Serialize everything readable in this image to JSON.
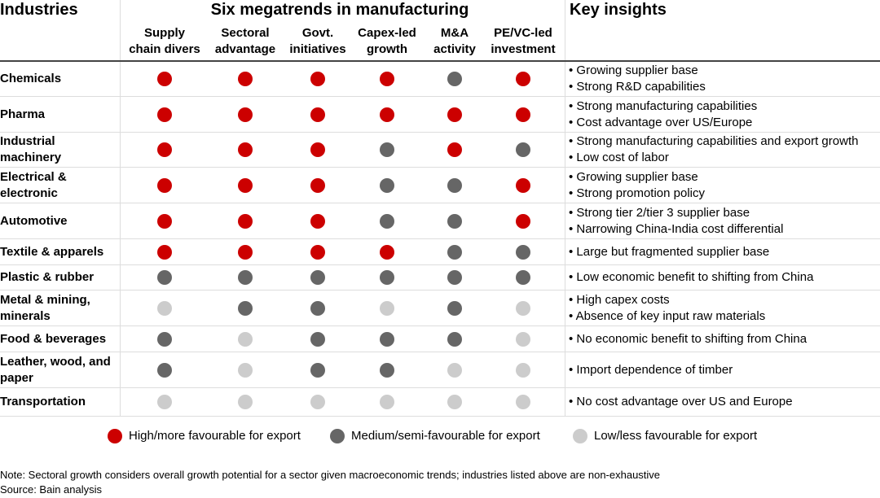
{
  "header": {
    "industries": "Industries",
    "megatrends": "Six megatrends in manufacturing",
    "insights": "Key insights",
    "columns": [
      [
        "Supply",
        "chain divers"
      ],
      [
        "Sectoral",
        "advantage"
      ],
      [
        "Govt.",
        "initiatives"
      ],
      [
        "Capex-led",
        "growth"
      ],
      [
        "M&A",
        "activity"
      ],
      [
        "PE/VC-led",
        "investment"
      ]
    ]
  },
  "colors": {
    "H": "#cc0000",
    "M": "#666666",
    "L": "#cccccc"
  },
  "rows": [
    {
      "industry": "Chemicals",
      "levels": [
        "H",
        "H",
        "H",
        "H",
        "M",
        "H"
      ],
      "insights": [
        "Growing supplier base",
        "Strong R&D capabilities"
      ]
    },
    {
      "industry": "Pharma",
      "levels": [
        "H",
        "H",
        "H",
        "H",
        "H",
        "H"
      ],
      "insights": [
        "Strong manufacturing capabilities",
        "Cost advantage over US/Europe"
      ]
    },
    {
      "industry": "Industrial machinery",
      "levels": [
        "H",
        "H",
        "H",
        "M",
        "H",
        "M"
      ],
      "insights": [
        "Strong manufacturing capabilities and export growth",
        "Low cost of labor"
      ]
    },
    {
      "industry": "Electrical & electronic",
      "levels": [
        "H",
        "H",
        "H",
        "M",
        "M",
        "H"
      ],
      "insights": [
        "Growing supplier base",
        "Strong promotion policy"
      ]
    },
    {
      "industry": "Automotive",
      "levels": [
        "H",
        "H",
        "H",
        "M",
        "M",
        "H"
      ],
      "insights": [
        "Strong tier 2/tier 3 supplier base",
        "Narrowing China-India cost differential"
      ]
    },
    {
      "industry": "Textile & apparels",
      "levels": [
        "H",
        "H",
        "H",
        "H",
        "M",
        "M"
      ],
      "insights": [
        "Large but fragmented supplier base"
      ]
    },
    {
      "industry": "Plastic & rubber",
      "levels": [
        "M",
        "M",
        "M",
        "M",
        "M",
        "M"
      ],
      "insights": [
        "Low economic benefit to shifting from China"
      ]
    },
    {
      "industry": "Metal & mining, minerals",
      "levels": [
        "L",
        "M",
        "M",
        "L",
        "M",
        "L"
      ],
      "insights": [
        "High capex costs",
        "Absence of key input raw materials"
      ]
    },
    {
      "industry": "Food & beverages",
      "levels": [
        "M",
        "L",
        "M",
        "M",
        "M",
        "L"
      ],
      "insights": [
        "No economic benefit to shifting from China"
      ]
    },
    {
      "industry": "Leather, wood, and paper",
      "levels": [
        "M",
        "L",
        "M",
        "M",
        "L",
        "L"
      ],
      "insights": [
        "Import dependence of timber"
      ]
    },
    {
      "industry": "Transportation",
      "levels": [
        "L",
        "L",
        "L",
        "L",
        "L",
        "L"
      ],
      "insights": [
        "No cost advantage over US and Europe"
      ]
    }
  ],
  "legend": [
    {
      "level": "H",
      "label": "High/more favourable for export"
    },
    {
      "level": "M",
      "label": "Medium/semi-favourable for export"
    },
    {
      "level": "L",
      "label": "Low/less favourable for export"
    }
  ],
  "notes": {
    "note": "Note: Sectoral growth considers overall growth potential for a sector given macroeconomic trends; industries listed above are non-exhaustive",
    "source": "Source: Bain analysis"
  }
}
